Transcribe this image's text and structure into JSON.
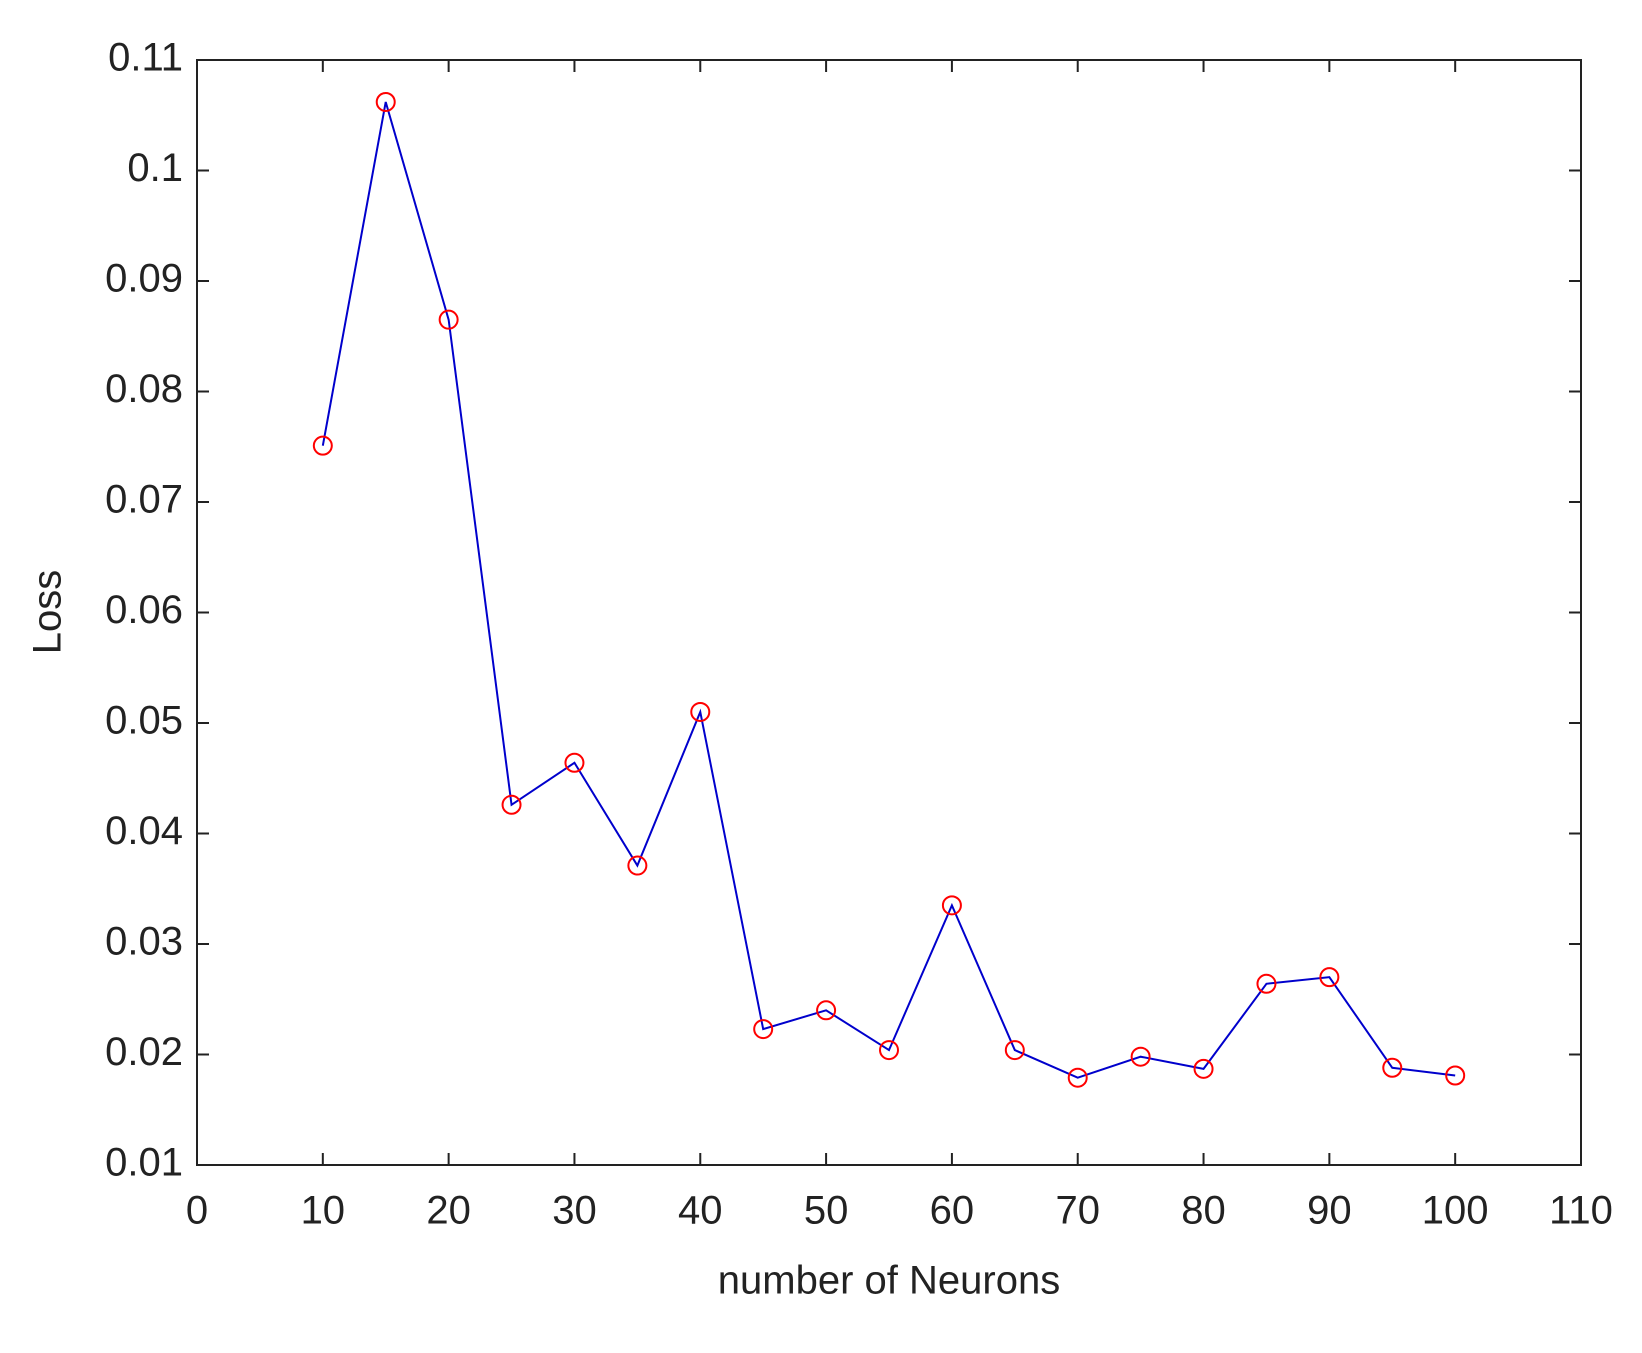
{
  "chart_data": {
    "type": "line",
    "xlabel": "number of Neurons",
    "ylabel": "Loss",
    "x": [
      10,
      15,
      20,
      25,
      30,
      35,
      40,
      45,
      50,
      55,
      60,
      65,
      70,
      75,
      80,
      85,
      90,
      95,
      100
    ],
    "series": [
      {
        "color": "#0000cc",
        "marker_color": "#ff0000",
        "values": [
          0.0751,
          0.1062,
          0.0865,
          0.0426,
          0.0464,
          0.0371,
          0.051,
          0.0223,
          0.024,
          0.0204,
          0.0335,
          0.0204,
          0.0179,
          0.0198,
          0.0187,
          0.0264,
          0.027,
          0.0188,
          0.0181
        ]
      }
    ],
    "xlim": [
      0,
      110
    ],
    "xticks": [
      0,
      10,
      20,
      30,
      40,
      50,
      60,
      70,
      80,
      90,
      100,
      110
    ],
    "ylim": [
      0.01,
      0.11
    ],
    "yticks": [
      0.01,
      0.02,
      0.03,
      0.04,
      0.05,
      0.06,
      0.07,
      0.08,
      0.09,
      0.1,
      0.11
    ],
    "grid": false
  }
}
